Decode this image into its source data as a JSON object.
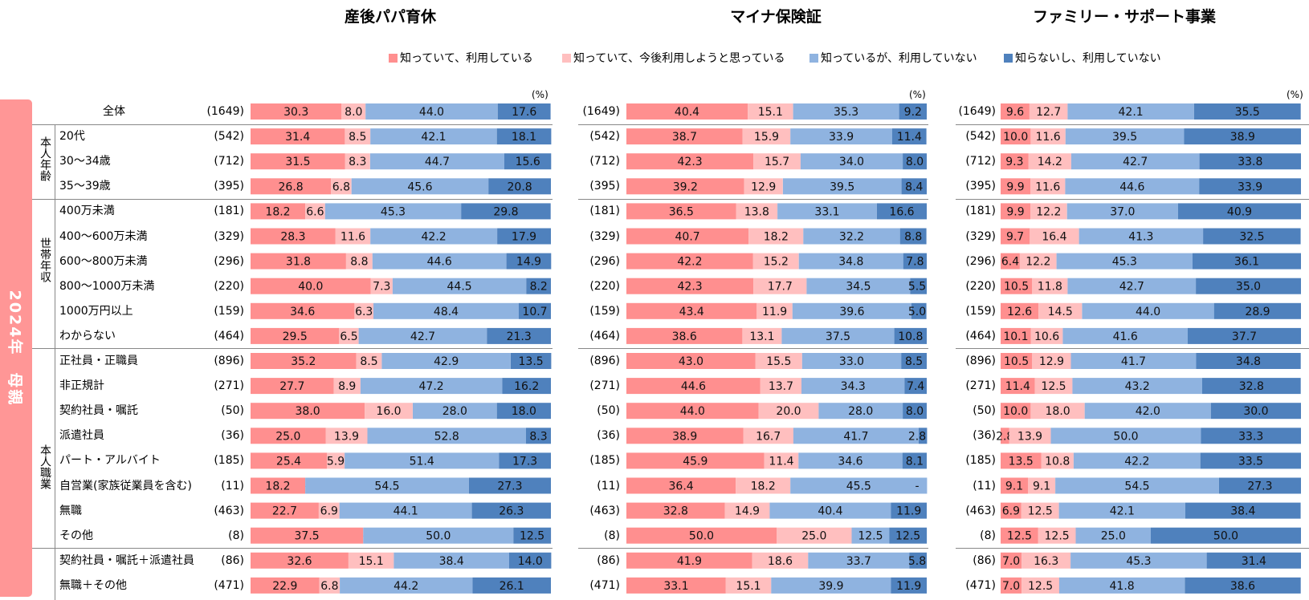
{
  "side_band_label": "2024年　母親",
  "unit_label": "(%)",
  "colors": [
    "#FF8F8F",
    "#FFBFBF",
    "#8FB3E0",
    "#4F81BD"
  ],
  "legend": [
    "知っていて、利用している",
    "知っていて、今後利用しようと思っている",
    "知っているが、利用していない",
    "知らないし、利用していない"
  ],
  "groups": [
    {
      "label": "本人年齢"
    },
    {
      "label": "世帯年収"
    },
    {
      "label": "本人職業"
    }
  ],
  "rows": [
    {
      "label": "全体",
      "n": "(1649)"
    },
    {
      "label": "20代",
      "n": "(542)"
    },
    {
      "label": "30～34歳",
      "n": "(712)"
    },
    {
      "label": "35～39歳",
      "n": "(395)"
    },
    {
      "label": "400万未満",
      "n": "(181)"
    },
    {
      "label": "400～600万未満",
      "n": "(329)"
    },
    {
      "label": "600～800万未満",
      "n": "(296)"
    },
    {
      "label": "800～1000万未満",
      "n": "(220)"
    },
    {
      "label": "1000万円以上",
      "n": "(159)"
    },
    {
      "label": "わからない",
      "n": "(464)"
    },
    {
      "label": "正社員・正職員",
      "n": "(896)"
    },
    {
      "label": "非正規計",
      "n": "(271)"
    },
    {
      "label": "契約社員・嘱託",
      "n": "(50)"
    },
    {
      "label": "派遣社員",
      "n": "(36)"
    },
    {
      "label": "パート・アルバイト",
      "n": "(185)"
    },
    {
      "label": "自営業(家族従業員を含む)",
      "n": "(11)"
    },
    {
      "label": "無職",
      "n": "(463)"
    },
    {
      "label": "その他",
      "n": "(8)"
    },
    {
      "label": "契約社員・嘱託＋派遣社員",
      "n": "(86)"
    },
    {
      "label": "無職＋その他",
      "n": "(471)"
    }
  ],
  "chart_data": [
    {
      "type": "bar",
      "orientation": "horizontal-stacked-100",
      "title": "産後パパ育休",
      "categories": [
        "全体",
        "20代",
        "30～34歳",
        "35～39歳",
        "400万未満",
        "400～600万未満",
        "600～800万未満",
        "800～1000万未満",
        "1000万円以上",
        "わからない",
        "正社員・正職員",
        "非正規計",
        "契約社員・嘱託",
        "派遣社員",
        "パート・アルバイト",
        "自営業(家族従業員を含む)",
        "無職",
        "その他",
        "契約社員・嘱託＋派遣社員",
        "無職＋その他"
      ],
      "series": [
        {
          "name": "知っていて、利用している",
          "values": [
            30.3,
            31.4,
            31.5,
            26.8,
            18.2,
            28.3,
            31.8,
            40.0,
            34.6,
            29.5,
            35.2,
            27.7,
            38.0,
            25.0,
            25.4,
            18.2,
            22.7,
            37.5,
            32.6,
            22.9
          ]
        },
        {
          "name": "知っていて、今後利用しようと思っている",
          "values": [
            8.0,
            8.5,
            8.3,
            6.8,
            6.6,
            11.6,
            8.8,
            7.3,
            6.3,
            6.5,
            8.5,
            8.9,
            16.0,
            13.9,
            5.9,
            0,
            6.9,
            0,
            15.1,
            6.8
          ]
        },
        {
          "name": "知っているが、利用していない",
          "values": [
            44.0,
            42.1,
            44.7,
            45.6,
            45.3,
            42.2,
            44.6,
            44.5,
            48.4,
            42.7,
            42.9,
            47.2,
            28.0,
            52.8,
            51.4,
            54.5,
            44.1,
            50.0,
            38.4,
            44.2
          ]
        },
        {
          "name": "知らないし、利用していない",
          "values": [
            17.6,
            18.1,
            15.6,
            20.8,
            29.8,
            17.9,
            14.9,
            8.2,
            10.7,
            21.3,
            13.5,
            16.2,
            18.0,
            8.3,
            17.3,
            27.3,
            26.3,
            12.5,
            14.0,
            26.1
          ]
        }
      ],
      "zero_label": "-",
      "xlim": [
        0,
        100
      ],
      "unit": "%"
    },
    {
      "type": "bar",
      "orientation": "horizontal-stacked-100",
      "title": "マイナ保険証",
      "categories": [
        "全体",
        "20代",
        "30～34歳",
        "35～39歳",
        "400万未満",
        "400～600万未満",
        "600～800万未満",
        "800～1000万未満",
        "1000万円以上",
        "わからない",
        "正社員・正職員",
        "非正規計",
        "契約社員・嘱託",
        "派遣社員",
        "パート・アルバイト",
        "自営業(家族従業員を含む)",
        "無職",
        "その他",
        "契約社員・嘱託＋派遣社員",
        "無職＋その他"
      ],
      "series": [
        {
          "name": "知っていて、利用している",
          "values": [
            40.4,
            38.7,
            42.3,
            39.2,
            36.5,
            40.7,
            42.2,
            42.3,
            43.4,
            38.6,
            43.0,
            44.6,
            44.0,
            38.9,
            45.9,
            36.4,
            32.8,
            50.0,
            41.9,
            33.1
          ]
        },
        {
          "name": "知っていて、今後利用しようと思っている",
          "values": [
            15.1,
            15.9,
            15.7,
            12.9,
            13.8,
            18.2,
            15.2,
            17.7,
            11.9,
            13.1,
            15.5,
            13.7,
            20.0,
            16.7,
            11.4,
            18.2,
            14.9,
            25.0,
            18.6,
            15.1
          ]
        },
        {
          "name": "知っているが、利用していない",
          "values": [
            35.3,
            33.9,
            34.0,
            39.5,
            33.1,
            32.2,
            34.8,
            34.5,
            39.6,
            37.5,
            33.0,
            34.3,
            28.0,
            41.7,
            34.6,
            45.5,
            40.4,
            12.5,
            33.7,
            39.9
          ]
        },
        {
          "name": "知らないし、利用していない",
          "values": [
            9.2,
            11.4,
            8.0,
            8.4,
            16.6,
            8.8,
            7.8,
            5.5,
            5.0,
            10.8,
            8.5,
            7.4,
            8.0,
            2.8,
            8.1,
            0,
            11.9,
            12.5,
            5.8,
            11.9
          ]
        }
      ],
      "zero_label": "-",
      "xlim": [
        0,
        100
      ],
      "unit": "%"
    },
    {
      "type": "bar",
      "orientation": "horizontal-stacked-100",
      "title": "ファミリー・サポート事業",
      "categories": [
        "全体",
        "20代",
        "30～34歳",
        "35～39歳",
        "400万未満",
        "400～600万未満",
        "600～800万未満",
        "800～1000万未満",
        "1000万円以上",
        "わからない",
        "正社員・正職員",
        "非正規計",
        "契約社員・嘱託",
        "派遣社員",
        "パート・アルバイト",
        "自営業(家族従業員を含む)",
        "無職",
        "その他",
        "契約社員・嘱託＋派遣社員",
        "無職＋その他"
      ],
      "series": [
        {
          "name": "知っていて、利用している",
          "values": [
            9.6,
            10.0,
            9.3,
            9.9,
            9.9,
            9.7,
            6.4,
            10.5,
            12.6,
            10.1,
            10.5,
            11.4,
            10.0,
            2.8,
            13.5,
            9.1,
            6.9,
            12.5,
            7.0,
            7.0
          ]
        },
        {
          "name": "知っていて、今後利用しようと思っている",
          "values": [
            12.7,
            11.6,
            14.2,
            11.6,
            12.2,
            16.4,
            12.2,
            11.8,
            14.5,
            10.6,
            12.9,
            12.5,
            18.0,
            13.9,
            10.8,
            9.1,
            12.5,
            12.5,
            16.3,
            12.5
          ]
        },
        {
          "name": "知っているが、利用していない",
          "values": [
            42.1,
            39.5,
            42.7,
            44.6,
            37.0,
            41.3,
            45.3,
            42.7,
            44.0,
            41.6,
            41.7,
            43.2,
            42.0,
            50.0,
            42.2,
            54.5,
            42.1,
            25.0,
            45.3,
            41.8
          ]
        },
        {
          "name": "知らないし、利用していない",
          "values": [
            35.5,
            38.9,
            33.8,
            33.9,
            40.9,
            32.5,
            36.1,
            35.0,
            28.9,
            37.7,
            34.8,
            32.8,
            30.0,
            33.3,
            33.5,
            27.3,
            38.4,
            50.0,
            31.4,
            38.6
          ]
        }
      ],
      "zero_label": "-",
      "xlim": [
        0,
        100
      ],
      "unit": "%"
    }
  ]
}
